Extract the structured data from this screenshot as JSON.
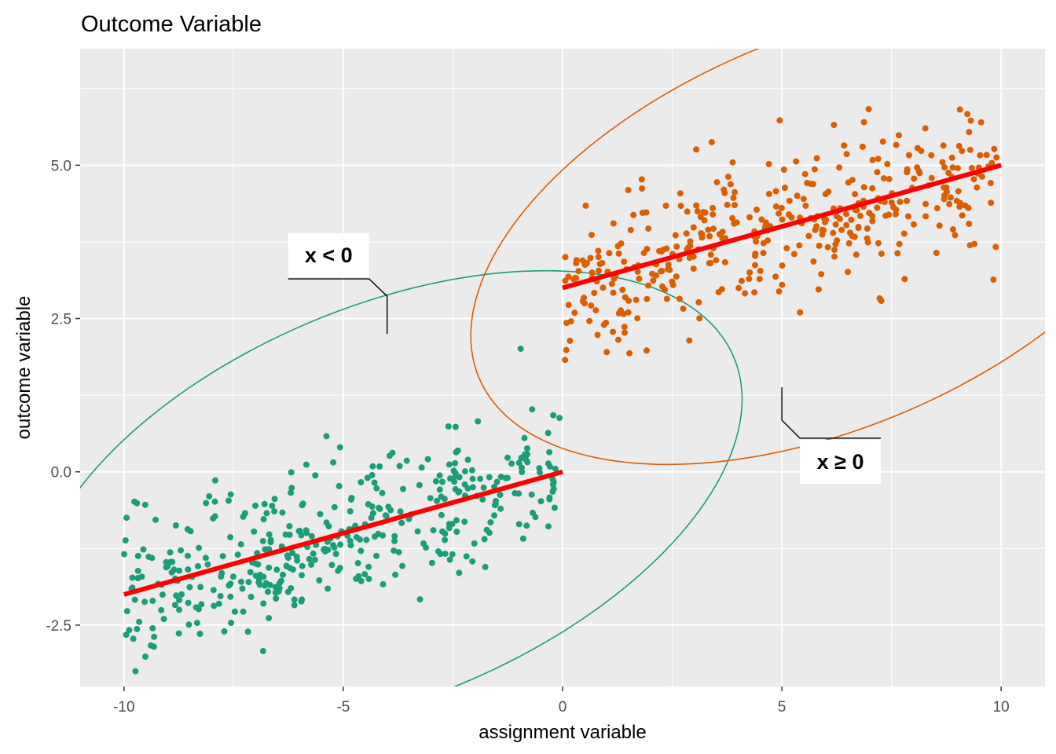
{
  "chart_data": {
    "type": "scatter",
    "title": "Outcome Variable",
    "xlabel": "assignment variable",
    "ylabel": "outcome variable",
    "xlim": [
      -11,
      11
    ],
    "ylim": [
      -3.5,
      6.9
    ],
    "x_ticks": [
      -10,
      -5,
      0,
      5,
      10
    ],
    "x_tick_labels": [
      "-10",
      "-5",
      "0",
      "5",
      "10"
    ],
    "y_ticks": [
      -2.5,
      0,
      2.5,
      5
    ],
    "y_tick_labels": [
      "-2.5",
      "0.0",
      "2.5",
      "5.0"
    ],
    "grid": true,
    "background": "#ebebeb",
    "series": [
      {
        "group": "below",
        "color": "#1b9e77",
        "n_points": 400,
        "x_range": [
          -10,
          0
        ],
        "fit": {
          "x": [
            -10,
            0
          ],
          "y": [
            -2,
            0
          ]
        },
        "ellipse": {
          "center": [
            -4,
            -0.5
          ],
          "semi_major": 8.3,
          "semi_minor": 3.3,
          "angle_deg": 14
        }
      },
      {
        "group": "above",
        "color": "#d95f02",
        "n_points": 400,
        "x_range": [
          0,
          10
        ],
        "fit": {
          "x": [
            0,
            10
          ],
          "y": [
            3,
            5
          ]
        },
        "ellipse": {
          "center": [
            6,
            3.9
          ],
          "semi_major": 8.3,
          "semi_minor": 3.3,
          "angle_deg": 14
        }
      }
    ],
    "fit_line_color": "#ff0000",
    "annotations": [
      {
        "text": "x < 0",
        "target": [
          -4,
          2.25
        ]
      },
      {
        "text": "x ≥ 0",
        "target": [
          5,
          1.38
        ]
      }
    ]
  }
}
